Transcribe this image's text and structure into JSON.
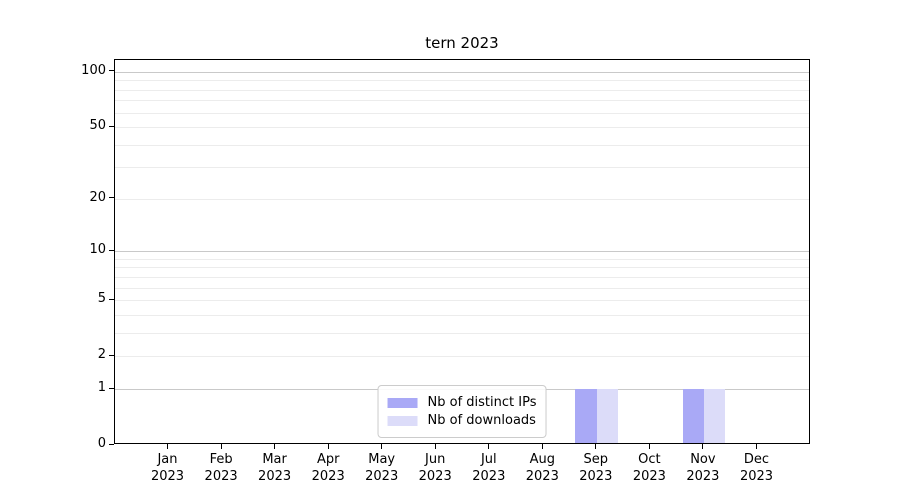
{
  "chart_data": {
    "type": "bar",
    "title": "tern 2023",
    "categories": [
      "Jan",
      "Feb",
      "Mar",
      "Apr",
      "May",
      "Jun",
      "Jul",
      "Aug",
      "Sep",
      "Oct",
      "Nov",
      "Dec"
    ],
    "category_year": "2023",
    "series": [
      {
        "name": "Nb of distinct IPs",
        "color": "#a9a9f6",
        "values": [
          0,
          0,
          0,
          0,
          0,
          0,
          0,
          0,
          1,
          0,
          1,
          0
        ]
      },
      {
        "name": "Nb of downloads",
        "color": "#dcdcf9",
        "values": [
          0,
          0,
          0,
          0,
          0,
          0,
          0,
          0,
          1,
          0,
          1,
          0
        ]
      }
    ],
    "yscale": "log1p",
    "ylim": [
      0,
      116
    ],
    "yticks": [
      0,
      1,
      2,
      5,
      10,
      20,
      50,
      100
    ],
    "ytick_labels": [
      "0",
      "1",
      "2",
      "5",
      "10",
      "20",
      "50",
      "100"
    ],
    "major_gridlines": [
      1,
      10,
      100
    ],
    "minor_gridlines": [
      2,
      3,
      4,
      5,
      6,
      7,
      8,
      9,
      20,
      30,
      40,
      50,
      60,
      70,
      80,
      90
    ],
    "grid": true,
    "legend_position": "lower center",
    "bar_width_frac": 0.4,
    "colors": {
      "bar_distinct_ips": "#a9a9f6",
      "bar_downloads": "#dcdcf9",
      "major_grid": "#c9c9c9",
      "minor_grid": "#ececec",
      "spine": "#000000",
      "text": "#000000",
      "background": "#ffffff"
    }
  }
}
